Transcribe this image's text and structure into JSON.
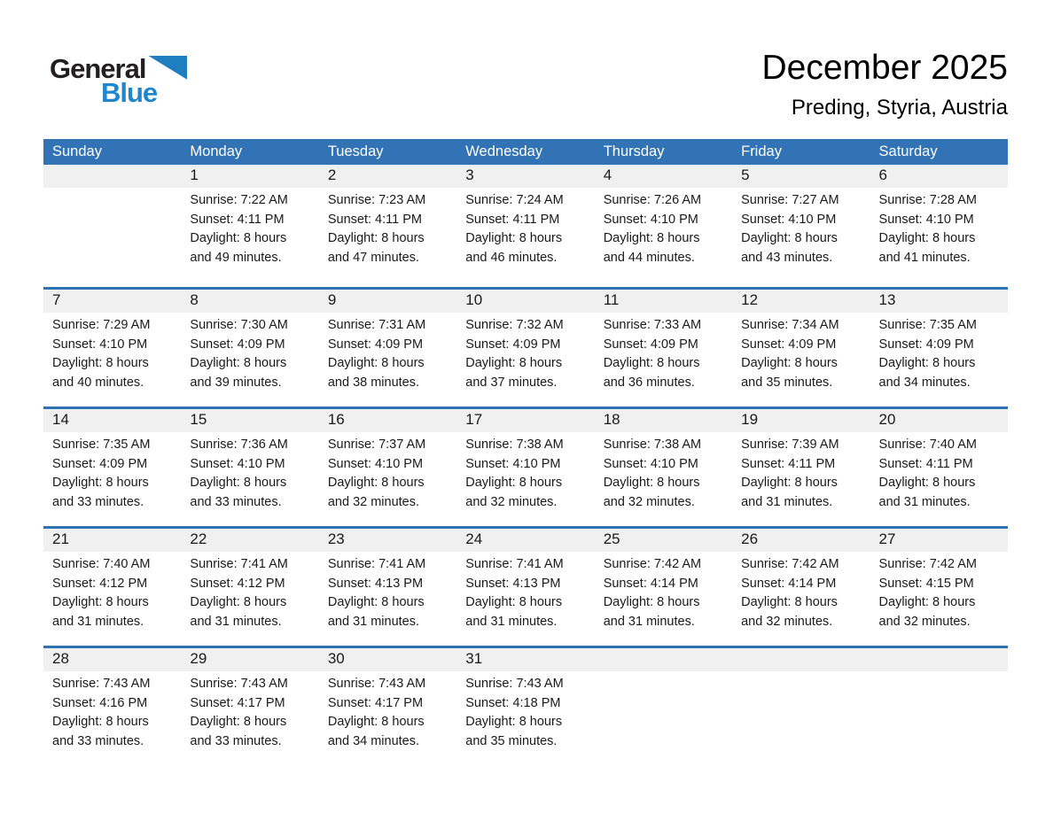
{
  "logo": {
    "general": "General",
    "blue": "Blue"
  },
  "header": {
    "title": "December 2025",
    "subtitle": "Preding, Styria, Austria"
  },
  "colors": {
    "header_blue": "#3273b5",
    "divider_blue": "#2e74b5",
    "strip_gray": "#f0f0f1",
    "logo_black": "#231f20",
    "logo_blue": "#2187cb",
    "triangle_blue": "#1f7ec0",
    "header_text": "#ffffff",
    "text_dark": "#1a1a1a"
  },
  "weekdays": [
    "Sunday",
    "Monday",
    "Tuesday",
    "Wednesday",
    "Thursday",
    "Friday",
    "Saturday"
  ],
  "weeks": [
    [
      null,
      {
        "num": "1",
        "sunrise": "Sunrise: 7:22 AM",
        "sunset": "Sunset: 4:11 PM",
        "daylight_lines": [
          "Daylight: 8 hours",
          "and 49 minutes."
        ]
      },
      {
        "num": "2",
        "sunrise": "Sunrise: 7:23 AM",
        "sunset": "Sunset: 4:11 PM",
        "daylight_lines": [
          "Daylight: 8 hours",
          "and 47 minutes."
        ]
      },
      {
        "num": "3",
        "sunrise": "Sunrise: 7:24 AM",
        "sunset": "Sunset: 4:11 PM",
        "daylight_lines": [
          "Daylight: 8 hours",
          "and 46 minutes."
        ]
      },
      {
        "num": "4",
        "sunrise": "Sunrise: 7:26 AM",
        "sunset": "Sunset: 4:10 PM",
        "daylight_lines": [
          "Daylight: 8 hours",
          "and 44 minutes."
        ]
      },
      {
        "num": "5",
        "sunrise": "Sunrise: 7:27 AM",
        "sunset": "Sunset: 4:10 PM",
        "daylight_lines": [
          "Daylight: 8 hours",
          "and 43 minutes."
        ]
      },
      {
        "num": "6",
        "sunrise": "Sunrise: 7:28 AM",
        "sunset": "Sunset: 4:10 PM",
        "daylight_lines": [
          "Daylight: 8 hours",
          "and 41 minutes."
        ]
      }
    ],
    [
      {
        "num": "7",
        "sunrise": "Sunrise: 7:29 AM",
        "sunset": "Sunset: 4:10 PM",
        "daylight_lines": [
          "Daylight: 8 hours",
          "and 40 minutes."
        ]
      },
      {
        "num": "8",
        "sunrise": "Sunrise: 7:30 AM",
        "sunset": "Sunset: 4:09 PM",
        "daylight_lines": [
          "Daylight: 8 hours",
          "and 39 minutes."
        ]
      },
      {
        "num": "9",
        "sunrise": "Sunrise: 7:31 AM",
        "sunset": "Sunset: 4:09 PM",
        "daylight_lines": [
          "Daylight: 8 hours",
          "and 38 minutes."
        ]
      },
      {
        "num": "10",
        "sunrise": "Sunrise: 7:32 AM",
        "sunset": "Sunset: 4:09 PM",
        "daylight_lines": [
          "Daylight: 8 hours",
          "and 37 minutes."
        ]
      },
      {
        "num": "11",
        "sunrise": "Sunrise: 7:33 AM",
        "sunset": "Sunset: 4:09 PM",
        "daylight_lines": [
          "Daylight: 8 hours",
          "and 36 minutes."
        ]
      },
      {
        "num": "12",
        "sunrise": "Sunrise: 7:34 AM",
        "sunset": "Sunset: 4:09 PM",
        "daylight_lines": [
          "Daylight: 8 hours",
          "and 35 minutes."
        ]
      },
      {
        "num": "13",
        "sunrise": "Sunrise: 7:35 AM",
        "sunset": "Sunset: 4:09 PM",
        "daylight_lines": [
          "Daylight: 8 hours",
          "and 34 minutes."
        ]
      }
    ],
    [
      {
        "num": "14",
        "sunrise": "Sunrise: 7:35 AM",
        "sunset": "Sunset: 4:09 PM",
        "daylight_lines": [
          "Daylight: 8 hours",
          "and 33 minutes."
        ]
      },
      {
        "num": "15",
        "sunrise": "Sunrise: 7:36 AM",
        "sunset": "Sunset: 4:10 PM",
        "daylight_lines": [
          "Daylight: 8 hours",
          "and 33 minutes."
        ]
      },
      {
        "num": "16",
        "sunrise": "Sunrise: 7:37 AM",
        "sunset": "Sunset: 4:10 PM",
        "daylight_lines": [
          "Daylight: 8 hours",
          "and 32 minutes."
        ]
      },
      {
        "num": "17",
        "sunrise": "Sunrise: 7:38 AM",
        "sunset": "Sunset: 4:10 PM",
        "daylight_lines": [
          "Daylight: 8 hours",
          "and 32 minutes."
        ]
      },
      {
        "num": "18",
        "sunrise": "Sunrise: 7:38 AM",
        "sunset": "Sunset: 4:10 PM",
        "daylight_lines": [
          "Daylight: 8 hours",
          "and 32 minutes."
        ]
      },
      {
        "num": "19",
        "sunrise": "Sunrise: 7:39 AM",
        "sunset": "Sunset: 4:11 PM",
        "daylight_lines": [
          "Daylight: 8 hours",
          "and 31 minutes."
        ]
      },
      {
        "num": "20",
        "sunrise": "Sunrise: 7:40 AM",
        "sunset": "Sunset: 4:11 PM",
        "daylight_lines": [
          "Daylight: 8 hours",
          "and 31 minutes."
        ]
      }
    ],
    [
      {
        "num": "21",
        "sunrise": "Sunrise: 7:40 AM",
        "sunset": "Sunset: 4:12 PM",
        "daylight_lines": [
          "Daylight: 8 hours",
          "and 31 minutes."
        ]
      },
      {
        "num": "22",
        "sunrise": "Sunrise: 7:41 AM",
        "sunset": "Sunset: 4:12 PM",
        "daylight_lines": [
          "Daylight: 8 hours",
          "and 31 minutes."
        ]
      },
      {
        "num": "23",
        "sunrise": "Sunrise: 7:41 AM",
        "sunset": "Sunset: 4:13 PM",
        "daylight_lines": [
          "Daylight: 8 hours",
          "and 31 minutes."
        ]
      },
      {
        "num": "24",
        "sunrise": "Sunrise: 7:41 AM",
        "sunset": "Sunset: 4:13 PM",
        "daylight_lines": [
          "Daylight: 8 hours",
          "and 31 minutes."
        ]
      },
      {
        "num": "25",
        "sunrise": "Sunrise: 7:42 AM",
        "sunset": "Sunset: 4:14 PM",
        "daylight_lines": [
          "Daylight: 8 hours",
          "and 31 minutes."
        ]
      },
      {
        "num": "26",
        "sunrise": "Sunrise: 7:42 AM",
        "sunset": "Sunset: 4:14 PM",
        "daylight_lines": [
          "Daylight: 8 hours",
          "and 32 minutes."
        ]
      },
      {
        "num": "27",
        "sunrise": "Sunrise: 7:42 AM",
        "sunset": "Sunset: 4:15 PM",
        "daylight_lines": [
          "Daylight: 8 hours",
          "and 32 minutes."
        ]
      }
    ],
    [
      {
        "num": "28",
        "sunrise": "Sunrise: 7:43 AM",
        "sunset": "Sunset: 4:16 PM",
        "daylight_lines": [
          "Daylight: 8 hours",
          "and 33 minutes."
        ]
      },
      {
        "num": "29",
        "sunrise": "Sunrise: 7:43 AM",
        "sunset": "Sunset: 4:17 PM",
        "daylight_lines": [
          "Daylight: 8 hours",
          "and 33 minutes."
        ]
      },
      {
        "num": "30",
        "sunrise": "Sunrise: 7:43 AM",
        "sunset": "Sunset: 4:17 PM",
        "daylight_lines": [
          "Daylight: 8 hours",
          "and 34 minutes."
        ]
      },
      {
        "num": "31",
        "sunrise": "Sunrise: 7:43 AM",
        "sunset": "Sunset: 4:18 PM",
        "daylight_lines": [
          "Daylight: 8 hours",
          "and 35 minutes."
        ]
      },
      null,
      null,
      null
    ]
  ]
}
